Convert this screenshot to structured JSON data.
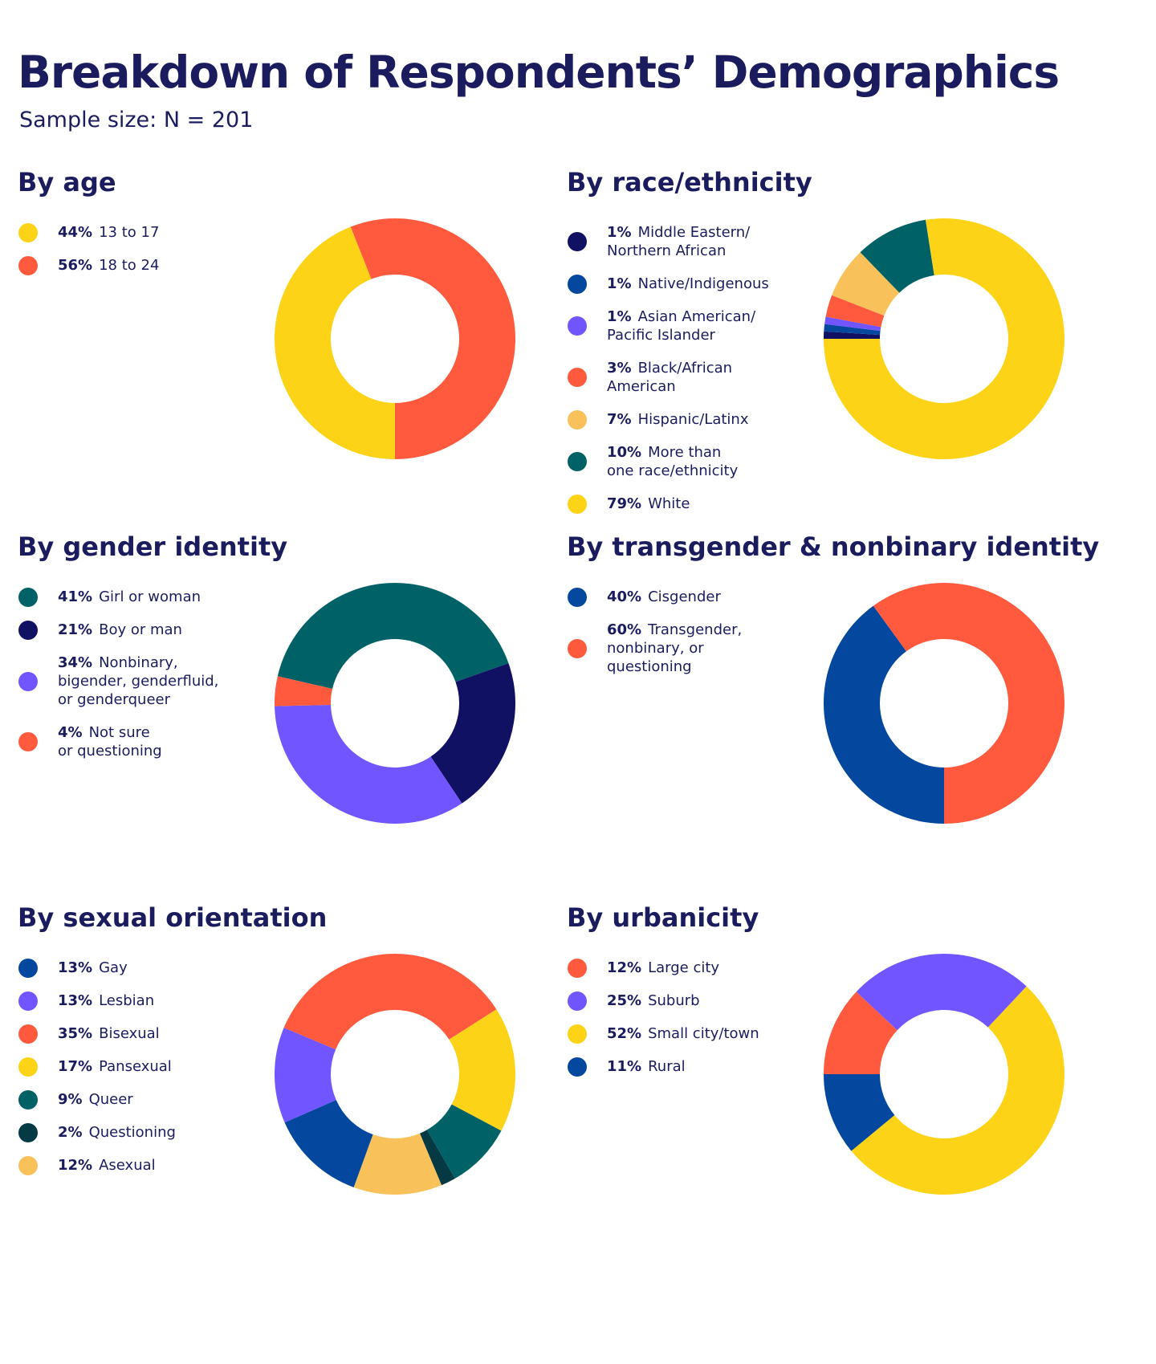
{
  "title": "Breakdown of Respondents’ Demographics",
  "subtitle": "Sample size: N = 201",
  "chart_data": [
    {
      "type": "pie",
      "donut": true,
      "title": "By age",
      "series": [
        {
          "name": "13 to 17",
          "value": 44,
          "label": "44%",
          "color": "#fdd317"
        },
        {
          "name": "18 to 24",
          "value": 56,
          "label": "56%",
          "color": "#ff5a3d"
        }
      ]
    },
    {
      "type": "pie",
      "donut": true,
      "title": "By race/ethnicity",
      "series": [
        {
          "name": "Middle Eastern/\nNorthern African",
          "value": 1,
          "label": "1%",
          "color": "#111163"
        },
        {
          "name": "Native/Indigenous",
          "value": 1,
          "label": "1%",
          "color": "#03479e"
        },
        {
          "name": "Asian American/\nPacific Islander",
          "value": 1,
          "label": "1%",
          "color": "#7155fe"
        },
        {
          "name": "Black/African American",
          "value": 3,
          "label": "3%",
          "color": "#ff5a3d"
        },
        {
          "name": "Hispanic/Latinx",
          "value": 7,
          "label": "7%",
          "color": "#f9c159"
        },
        {
          "name": "More than\none race/ethnicity",
          "value": 10,
          "label": "10%",
          "color": "#006166"
        },
        {
          "name": "White",
          "value": 79,
          "label": "79%",
          "color": "#fdd317"
        }
      ]
    },
    {
      "type": "pie",
      "donut": true,
      "title": "By gender identity",
      "series": [
        {
          "name": "Girl or woman",
          "value": 41,
          "label": "41%",
          "color": "#006166"
        },
        {
          "name": "Boy or man",
          "value": 21,
          "label": "21%",
          "color": "#111163"
        },
        {
          "name": "Nonbinary,\nbigender, genderfluid,\nor genderqueer",
          "value": 34,
          "label": "34%",
          "color": "#7155fe"
        },
        {
          "name": "Not sure\nor questioning",
          "value": 4,
          "label": "4%",
          "color": "#ff5a3d"
        }
      ]
    },
    {
      "type": "pie",
      "donut": true,
      "title": "By transgender & nonbinary identity",
      "series": [
        {
          "name": "Cisgender",
          "value": 40,
          "label": "40%",
          "color": "#03479e"
        },
        {
          "name": "Transgender,\nnonbinary, or\nquestioning",
          "value": 60,
          "label": "60%",
          "color": "#ff5a3d"
        }
      ]
    },
    {
      "type": "pie",
      "donut": true,
      "title": "By sexual orientation",
      "series": [
        {
          "name": "Gay",
          "value": 13,
          "label": "13%",
          "color": "#03479e"
        },
        {
          "name": "Lesbian",
          "value": 13,
          "label": "13%",
          "color": "#7155fe"
        },
        {
          "name": "Bisexual",
          "value": 35,
          "label": "35%",
          "color": "#ff5a3d"
        },
        {
          "name": "Pansexual",
          "value": 17,
          "label": "17%",
          "color": "#fdd317"
        },
        {
          "name": "Queer",
          "value": 9,
          "label": "9%",
          "color": "#006166"
        },
        {
          "name": "Questioning",
          "value": 2,
          "label": "2%",
          "color": "#053a45"
        },
        {
          "name": "Asexual",
          "value": 12,
          "label": "12%",
          "color": "#f9c159"
        }
      ]
    },
    {
      "type": "pie",
      "donut": true,
      "title": "By urbanicity",
      "series": [
        {
          "name": "Large city",
          "value": 12,
          "label": "12%",
          "color": "#ff5a3d"
        },
        {
          "name": "Suburb",
          "value": 25,
          "label": "25%",
          "color": "#7155fe"
        },
        {
          "name": "Small city/town",
          "value": 52,
          "label": "52%",
          "color": "#fdd317"
        },
        {
          "name": "Rural",
          "value": 11,
          "label": "11%",
          "color": "#03479e"
        }
      ]
    }
  ]
}
